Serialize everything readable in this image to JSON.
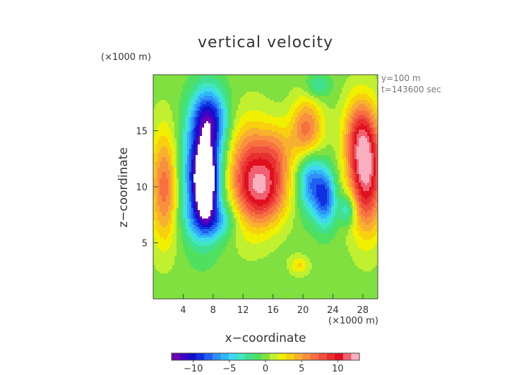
{
  "chart_data": {
    "type": "heatmap",
    "title": "vertical velocity",
    "xlabel": "x−coordinate",
    "ylabel": "z−coordinate",
    "x_unit_label": "(×1000 m)",
    "y_unit_label": "(×1000 m)",
    "annotations": [
      "y=100 m",
      "t=143600 sec"
    ],
    "xlim": [
      0,
      30
    ],
    "ylim": [
      0,
      20
    ],
    "x_ticks": [
      4,
      8,
      12,
      16,
      20,
      24,
      28
    ],
    "y_ticks": [
      5,
      10,
      15
    ],
    "colorbar": {
      "min": -13,
      "max": 13,
      "ticks": [
        -10,
        -5,
        0,
        5,
        10
      ],
      "tick_labels": [
        "−10",
        "−5",
        "0",
        "5",
        "10"
      ],
      "colors": [
        "#6a00b0",
        "#4000c8",
        "#1010c8",
        "#1030e0",
        "#2060f0",
        "#3090f8",
        "#30b8f8",
        "#40d8f0",
        "#40e8c0",
        "#40e090",
        "#50e060",
        "#80e040",
        "#c0f030",
        "#f0f000",
        "#f8d010",
        "#f8b030",
        "#f89040",
        "#f87040",
        "#f05040",
        "#e83030",
        "#e01020",
        "#f06070",
        "#f8b0c0"
      ]
    },
    "features": [
      {
        "x": 7.0,
        "z": 10.5,
        "value": -14,
        "sx": 0.9,
        "sz": 1.9
      },
      {
        "x": 6.5,
        "z": 11.0,
        "value": -11,
        "sx": 1.8,
        "sz": 3.5
      },
      {
        "x": 7.5,
        "z": 16.0,
        "value": -9,
        "sx": 1.6,
        "sz": 2.0
      },
      {
        "x": 8.0,
        "z": 7.0,
        "value": -5,
        "sx": 2.2,
        "sz": 1.2
      },
      {
        "x": 1.5,
        "z": 10.0,
        "value": 7,
        "sx": 1.3,
        "sz": 3.5
      },
      {
        "x": 13.0,
        "z": 11.0,
        "value": 9,
        "sx": 2.2,
        "sz": 3.2
      },
      {
        "x": 15.5,
        "z": 9.5,
        "value": 6,
        "sx": 2.0,
        "sz": 2.0
      },
      {
        "x": 16.5,
        "z": 13.0,
        "value": 4,
        "sx": 1.5,
        "sz": 1.8
      },
      {
        "x": 20.5,
        "z": 15.0,
        "value": 7,
        "sx": 1.5,
        "sz": 2.0
      },
      {
        "x": 21.0,
        "z": 10.5,
        "value": -7,
        "sx": 1.2,
        "sz": 2.0
      },
      {
        "x": 23.0,
        "z": 9.0,
        "value": -8,
        "sx": 1.0,
        "sz": 1.8
      },
      {
        "x": 26.0,
        "z": 8.0,
        "value": -5,
        "sx": 0.8,
        "sz": 1.0
      },
      {
        "x": 28.5,
        "z": 11.0,
        "value": 11,
        "sx": 1.6,
        "sz": 3.5
      },
      {
        "x": 27.5,
        "z": 14.5,
        "value": 6,
        "sx": 1.5,
        "sz": 2.5
      },
      {
        "x": 19.5,
        "z": 3.0,
        "value": 3,
        "sx": 0.9,
        "sz": 0.6
      },
      {
        "x": 22.0,
        "z": 19.0,
        "value": -3,
        "sx": 1.2,
        "sz": 0.8
      }
    ]
  }
}
